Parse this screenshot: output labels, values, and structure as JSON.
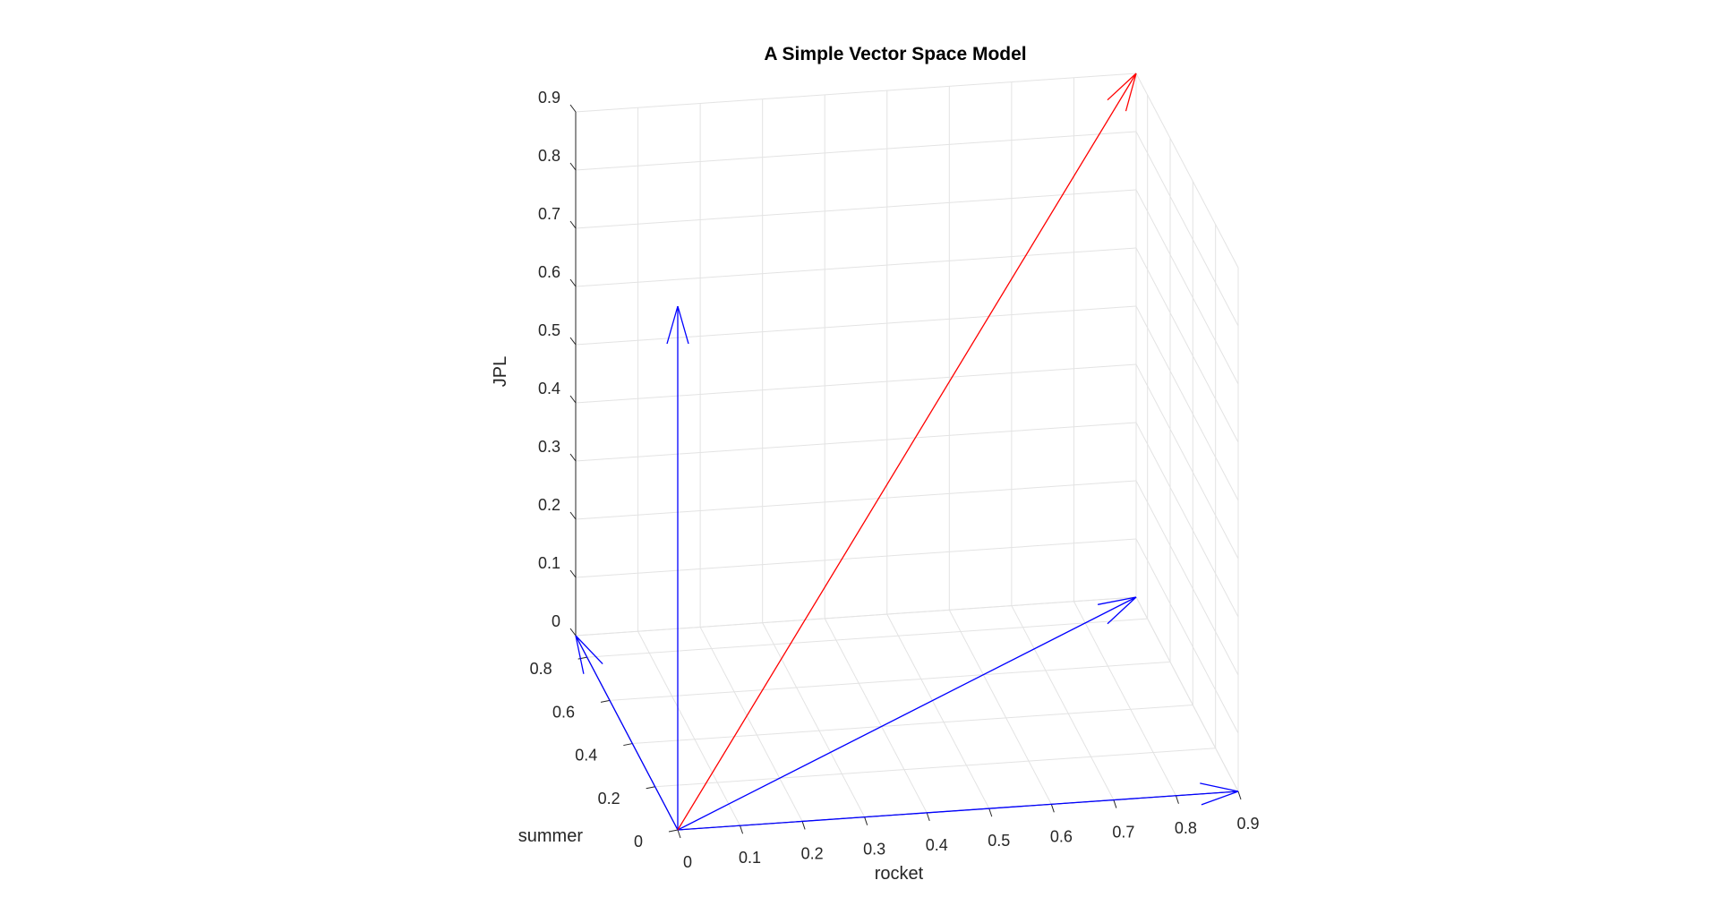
{
  "chart_data": {
    "type": "quiver3",
    "title": "A Simple Vector Space Model",
    "xlabel": "rocket",
    "ylabel": "summer",
    "zlabel": "JPL",
    "xlim": [
      0,
      0.9
    ],
    "ylim": [
      0,
      0.9
    ],
    "zlim": [
      0,
      0.9
    ],
    "grid": true,
    "x_ticks": [
      "0",
      "0.1",
      "0.2",
      "0.3",
      "0.4",
      "0.5",
      "0.6",
      "0.7",
      "0.8",
      "0.9"
    ],
    "y_ticks": [
      "0",
      "0.2",
      "0.4",
      "0.6",
      "0.8"
    ],
    "z_ticks": [
      "0",
      "0.1",
      "0.2",
      "0.3",
      "0.4",
      "0.5",
      "0.6",
      "0.7",
      "0.8",
      "0.9"
    ],
    "vectors": [
      {
        "start": [
          0,
          0,
          0
        ],
        "end": [
          0.9,
          0,
          0
        ],
        "color": "#0000ff"
      },
      {
        "start": [
          0,
          0,
          0
        ],
        "end": [
          0,
          0.9,
          0
        ],
        "color": "#0000ff"
      },
      {
        "start": [
          0,
          0,
          0
        ],
        "end": [
          0,
          0,
          0.9
        ],
        "color": "#0000ff"
      },
      {
        "start": [
          0,
          0,
          0
        ],
        "end": [
          0.9,
          0.9,
          0
        ],
        "color": "#0000ff"
      },
      {
        "start": [
          0,
          0,
          0
        ],
        "end": [
          0.9,
          0.9,
          0.9
        ],
        "color": "#ff0000"
      }
    ]
  }
}
